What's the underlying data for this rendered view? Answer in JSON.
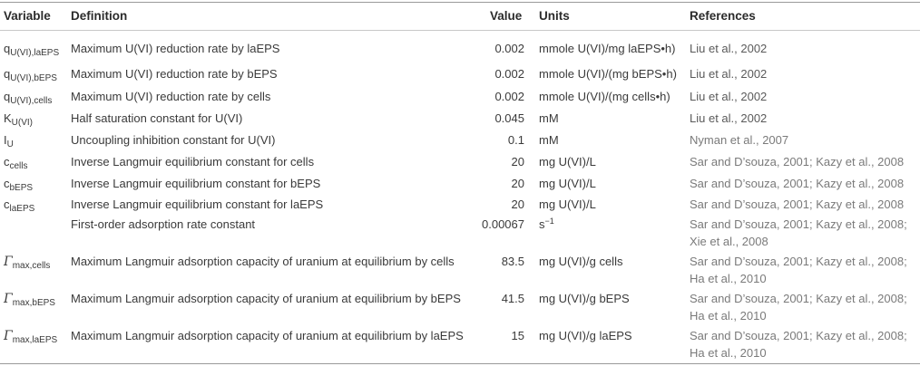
{
  "headers": {
    "variable": "Variable",
    "definition": "Definition",
    "value": "Value",
    "units": "Units",
    "references": "References"
  },
  "rows": [
    {
      "var_main": "q",
      "var_sub": "U(VI),laEPS",
      "definition": "Maximum U(VI) reduction rate by laEPS",
      "value": "0.002",
      "units": "mmole U(VI)/mg laEPS•h)",
      "refs": [
        "Liu et al., 2002"
      ]
    },
    {
      "var_main": "q",
      "var_sub": "U(VI),bEPS",
      "definition": "Maximum U(VI) reduction rate by bEPS",
      "value": "0.002",
      "units": "mmole U(VI)/(mg bEPS•h)",
      "refs": [
        "Liu et al., 2002"
      ]
    },
    {
      "var_main": "q",
      "var_sub": "U(VI),cells",
      "definition": "Maximum U(VI) reduction rate by cells",
      "value": "0.002",
      "units": "mmole U(VI)/(mg cells•h)",
      "refs": [
        "Liu et al., 2002"
      ]
    },
    {
      "var_main": "K",
      "var_sub": "U(VI)",
      "definition": "Half saturation constant for U(VI)",
      "value": "0.045",
      "units": "mM",
      "refs": [
        "Liu et al., 2002"
      ]
    },
    {
      "var_main": "I",
      "var_sub": "U",
      "definition": "Uncoupling inhibition constant for U(VI)",
      "value": "0.1",
      "units": "mM",
      "refs": [
        "Nyman et al., 2007"
      ]
    },
    {
      "var_main": "c",
      "var_sub": "cells",
      "definition": "Inverse Langmuir equilibrium constant for cells",
      "value": "20",
      "units": "mg U(VI)/L",
      "refs": [
        "Sar and D’souza, 2001; Kazy et al., 2008"
      ]
    },
    {
      "var_main": "c",
      "var_sub": "bEPS",
      "definition": "Inverse Langmuir equilibrium constant for bEPS",
      "value": "20",
      "units": "mg U(VI)/L",
      "refs": [
        "Sar and D’souza, 2001; Kazy et al., 2008"
      ]
    },
    {
      "var_main": "c",
      "var_sub": "laEPS",
      "definition": "Inverse Langmuir equilibrium constant for laEPS",
      "value": "20",
      "units": "mg U(VI)/L",
      "refs": [
        "Sar and D’souza, 2001; Kazy et al., 2008"
      ]
    },
    {
      "var_main": "",
      "var_sub": "",
      "definition": "First-order adsorption rate constant",
      "value": "0.00067",
      "units": "s",
      "units_sup": "−1",
      "refs": [
        "Sar and D’souza, 2001; Kazy et al., 2008;",
        "Xie et al., 2008"
      ]
    },
    {
      "var_main": "Γ",
      "var_sub": "max,cells",
      "definition": "Maximum Langmuir adsorption capacity of uranium at equilibrium by cells",
      "value": "83.5",
      "units": "mg U(VI)/g cells",
      "refs": [
        "Sar and D’souza, 2001; Kazy et al., 2008;",
        "Ha et al., 2010"
      ]
    },
    {
      "var_main": "Γ",
      "var_sub": "max,bEPS",
      "definition": "Maximum Langmuir adsorption capacity of uranium at equilibrium by bEPS",
      "value": "41.5",
      "units": "mg U(VI)/g bEPS",
      "refs": [
        "Sar and D’souza, 2001; Kazy et al., 2008;",
        "Ha et al., 2010"
      ]
    },
    {
      "var_main": "Γ",
      "var_sub": "max,laEPS",
      "definition": "Maximum Langmuir adsorption capacity of uranium at equilibrium by laEPS",
      "value": "15",
      "units": "mg U(VI)/g laEPS",
      "refs": [
        "Sar and D’souza, 2001; Kazy et al., 2008;",
        "Ha et al., 2010"
      ]
    }
  ]
}
